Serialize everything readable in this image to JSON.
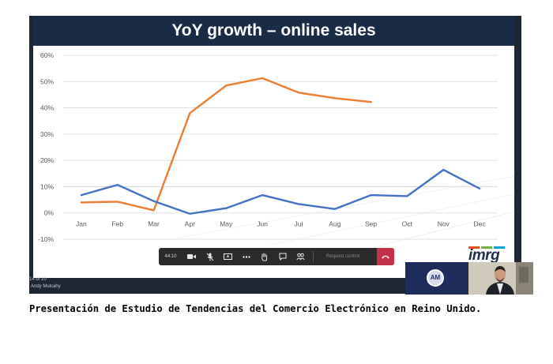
{
  "slide": {
    "title": "YoY growth – online sales",
    "counter": "14 of 10",
    "presenter": "Andy Mulcahy",
    "logo": "imrg"
  },
  "toolbar": {
    "time": "44:10",
    "request_control": "Request control",
    "icons": [
      "video-camera-icon",
      "microphone-muted-icon",
      "share-screen-icon",
      "more-options-icon",
      "raise-hand-icon",
      "chat-icon",
      "participants-icon",
      "hang-up-icon"
    ]
  },
  "video": {
    "avatar_initials": "AM",
    "participant_label": "Andy Mulcahy"
  },
  "caption": "Presentación de Estudio de Tendencias del Comercio Electrónico en Reino Unido.",
  "colors": {
    "header": "#1a2b45",
    "series_orange": "#ed7d31",
    "series_blue": "#4472c4",
    "hangup": "#c4314b"
  },
  "chart_data": {
    "type": "line",
    "title": "YoY growth – online sales",
    "categories": [
      "Jan",
      "Feb",
      "Mar",
      "Apr",
      "May",
      "Jun",
      "Jul",
      "Aug",
      "Sep",
      "Oct",
      "Nov",
      "Dec"
    ],
    "yticks": [
      "60%",
      "50%",
      "40%",
      "30%",
      "20%",
      "10%",
      "0%",
      "-10%"
    ],
    "ylim": [
      -10,
      60
    ],
    "grid": true,
    "series": [
      {
        "key": "orange",
        "color": "#ed7d31",
        "values": [
          4,
          4.3,
          1,
          38,
          48.5,
          51.3,
          45.8,
          43.7,
          42.2,
          null,
          null,
          null
        ]
      },
      {
        "key": "blue",
        "color": "#4472c4",
        "values": [
          6.8,
          10.7,
          4.5,
          -0.3,
          1.8,
          6.8,
          3.4,
          1.5,
          6.8,
          6.4,
          16.4,
          9.3
        ]
      }
    ]
  }
}
